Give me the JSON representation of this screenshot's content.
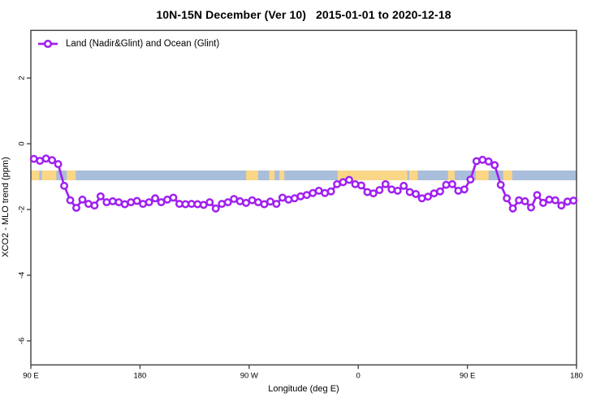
{
  "title": "10N-15N December (Ver 10)   2015-01-01 to 2020-12-18",
  "legend": {
    "label": "Land (Nadir&Glint) and Ocean (Glint)"
  },
  "colors": {
    "series": "#A020F0",
    "marker_fill": "#ffffff",
    "ocean_band": "#A9BEDB",
    "land_patch": "#FAD687",
    "axis": "#3d3d3d",
    "text": "#000000"
  },
  "chart_data": {
    "type": "line",
    "title": "10N-15N December (Ver 10)   2015-01-01 to 2020-12-18",
    "xlabel": "Longitude (deg E)",
    "ylabel": "XCO2 - MLO trend (ppm)",
    "xlim": [
      90,
      540
    ],
    "ylim": [
      -6.73,
      3.45
    ],
    "grid": "off",
    "legend_position": "top-left-inside",
    "x_ticks": [
      {
        "lon": 90,
        "label": "90 E"
      },
      {
        "lon": 180,
        "label": "180"
      },
      {
        "lon": 270,
        "label": "90 W"
      },
      {
        "lon": 360,
        "label": "0"
      },
      {
        "lon": 450,
        "label": "90 E"
      },
      {
        "lon": 540,
        "label": "180"
      }
    ],
    "y_ticks": [
      {
        "v": 2,
        "label": "2"
      },
      {
        "v": 0,
        "label": "0"
      },
      {
        "v": -2,
        "label": "-2"
      },
      {
        "v": -4,
        "label": "-4"
      },
      {
        "v": -6,
        "label": "-6"
      }
    ],
    "band": {
      "description": "ocean/land strip for 10N-15N latitude belt",
      "y_top": -0.815,
      "y_bottom": -1.111,
      "ocean_color": "#A9BEDB",
      "land_color": "#FAD687",
      "land_patches_lon": [
        [
          90,
          97
        ],
        [
          99,
          111
        ],
        [
          119.5,
          127
        ],
        [
          267.5,
          277.5
        ],
        [
          286.5,
          291
        ],
        [
          295,
          299
        ],
        [
          343,
          400.5
        ],
        [
          402,
          409
        ],
        [
          434,
          439.5
        ],
        [
          457,
          467.5
        ],
        [
          479.5,
          487
        ]
      ]
    },
    "series": [
      {
        "name": "Land (Nadir&Glint) and Ocean (Glint)",
        "color": "#A020F0",
        "marker": "open-circle",
        "lon_start": 92.5,
        "lon_step": 5,
        "values": [
          -0.46,
          -0.52,
          -0.45,
          -0.5,
          -0.62,
          -1.28,
          -1.72,
          -1.95,
          -1.7,
          -1.83,
          -1.88,
          -1.6,
          -1.78,
          -1.75,
          -1.78,
          -1.84,
          -1.78,
          -1.74,
          -1.83,
          -1.78,
          -1.66,
          -1.78,
          -1.7,
          -1.64,
          -1.83,
          -1.84,
          -1.83,
          -1.84,
          -1.86,
          -1.78,
          -1.97,
          -1.83,
          -1.78,
          -1.68,
          -1.75,
          -1.8,
          -1.72,
          -1.78,
          -1.84,
          -1.76,
          -1.83,
          -1.64,
          -1.7,
          -1.66,
          -1.6,
          -1.56,
          -1.5,
          -1.43,
          -1.5,
          -1.45,
          -1.23,
          -1.17,
          -1.1,
          -1.23,
          -1.27,
          -1.47,
          -1.51,
          -1.41,
          -1.23,
          -1.39,
          -1.43,
          -1.28,
          -1.47,
          -1.53,
          -1.66,
          -1.61,
          -1.51,
          -1.45,
          -1.25,
          -1.23,
          -1.43,
          -1.39,
          -1.09,
          -0.53,
          -0.49,
          -0.54,
          -0.65,
          -1.25,
          -1.66,
          -1.97,
          -1.72,
          -1.75,
          -1.94,
          -1.56,
          -1.8,
          -1.7,
          -1.72,
          -1.88,
          -1.76,
          -1.73
        ]
      }
    ]
  }
}
